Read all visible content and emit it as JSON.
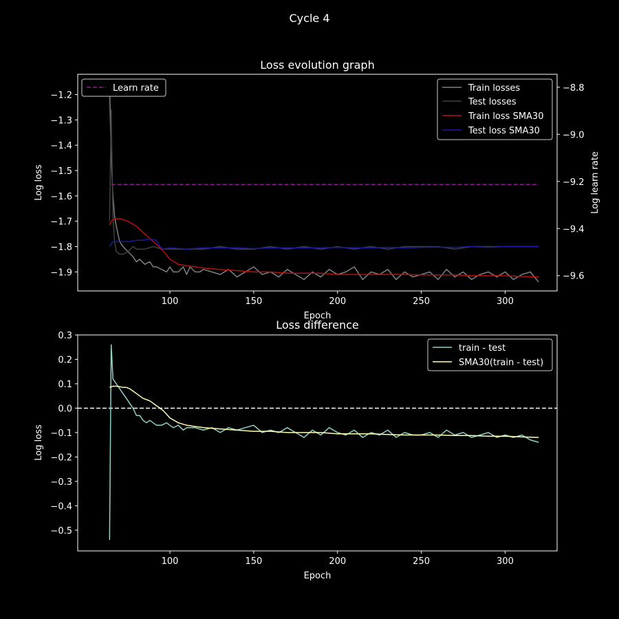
{
  "figure": {
    "suptitle": "Cycle 4",
    "background": "#000000",
    "foreground": "#ffffff"
  },
  "chart_data": [
    {
      "type": "line",
      "title": "Loss evolution graph",
      "xlabel": "Epoch",
      "ylabel": "Log loss",
      "y2label": "Log learn rate",
      "xlim": [
        45,
        331
      ],
      "ylim": [
        -1.975,
        -1.12
      ],
      "y2lim": [
        -9.665,
        -8.745
      ],
      "xticks": [
        100,
        150,
        200,
        250,
        300
      ],
      "xtick_labels": [
        "100",
        "150",
        "200",
        "250",
        "300"
      ],
      "yticks": [
        -1.9,
        -1.8,
        -1.7,
        -1.6,
        -1.5,
        -1.4,
        -1.3,
        -1.2
      ],
      "ytick_labels": [
        "−1.9",
        "−1.8",
        "−1.7",
        "−1.6",
        "−1.5",
        "−1.4",
        "−1.3",
        "−1.2"
      ],
      "y2ticks": [
        -9.6,
        -9.4,
        -9.2,
        -9.0,
        -8.8
      ],
      "y2tick_labels": [
        "−9.6",
        "−9.4",
        "−9.2",
        "−9.0",
        "−8.8"
      ],
      "grid": false,
      "legend_left": {
        "placement": "upper-left",
        "entries": [
          "Learn rate"
        ]
      },
      "legend_right": {
        "placement": "upper-right",
        "entries": [
          "Train losses",
          "Test losses",
          "Train loss SMA30",
          "Test loss SMA30"
        ]
      },
      "series": [
        {
          "name": "Learn rate",
          "axis": "right",
          "color": "#8b1a8b",
          "dashed": true,
          "x": [
            65,
            320
          ],
          "y": [
            -9.213,
            -9.213
          ]
        },
        {
          "name": "Train losses",
          "axis": "left",
          "color": "#808080",
          "x": [
            64,
            65,
            66,
            67,
            68,
            70,
            72,
            75,
            78,
            80,
            82,
            85,
            88,
            90,
            92,
            95,
            98,
            100,
            102,
            105,
            108,
            110,
            112,
            115,
            118,
            120,
            125,
            130,
            135,
            140,
            145,
            150,
            155,
            160,
            165,
            170,
            175,
            180,
            185,
            190,
            195,
            200,
            205,
            210,
            215,
            220,
            225,
            230,
            235,
            240,
            245,
            250,
            255,
            260,
            265,
            270,
            275,
            280,
            285,
            290,
            295,
            300,
            305,
            310,
            315,
            320
          ],
          "y": [
            -1.17,
            -1.45,
            -1.6,
            -1.68,
            -1.72,
            -1.78,
            -1.8,
            -1.82,
            -1.84,
            -1.86,
            -1.85,
            -1.87,
            -1.86,
            -1.88,
            -1.88,
            -1.89,
            -1.9,
            -1.88,
            -1.9,
            -1.9,
            -1.88,
            -1.91,
            -1.88,
            -1.9,
            -1.9,
            -1.89,
            -1.9,
            -1.91,
            -1.89,
            -1.92,
            -1.9,
            -1.88,
            -1.91,
            -1.9,
            -1.92,
            -1.89,
            -1.91,
            -1.93,
            -1.9,
            -1.92,
            -1.89,
            -1.91,
            -1.9,
            -1.88,
            -1.93,
            -1.9,
            -1.91,
            -1.89,
            -1.93,
            -1.9,
            -1.92,
            -1.91,
            -1.9,
            -1.93,
            -1.89,
            -1.92,
            -1.9,
            -1.93,
            -1.91,
            -1.9,
            -1.92,
            -1.9,
            -1.93,
            -1.91,
            -1.9,
            -1.94
          ]
        },
        {
          "name": "Test losses",
          "axis": "left",
          "color": "#404040",
          "x": [
            64,
            65,
            66,
            67,
            68,
            70,
            72,
            75,
            78,
            80,
            85,
            90,
            95,
            100,
            110,
            120,
            130,
            140,
            150,
            160,
            170,
            180,
            190,
            200,
            210,
            220,
            230,
            240,
            250,
            260,
            270,
            280,
            290,
            300,
            310,
            320
          ],
          "y": [
            -1.7,
            -1.26,
            -1.68,
            -1.78,
            -1.82,
            -1.83,
            -1.83,
            -1.82,
            -1.8,
            -1.81,
            -1.81,
            -1.8,
            -1.81,
            -1.81,
            -1.81,
            -1.81,
            -1.8,
            -1.81,
            -1.81,
            -1.8,
            -1.81,
            -1.8,
            -1.81,
            -1.8,
            -1.81,
            -1.8,
            -1.81,
            -1.8,
            -1.8,
            -1.8,
            -1.81,
            -1.8,
            -1.8,
            -1.8,
            -1.8,
            -1.8
          ]
        },
        {
          "name": "Train loss SMA30",
          "axis": "left",
          "color": "#b81010",
          "x": [
            64,
            65,
            67,
            70,
            75,
            80,
            85,
            90,
            95,
            100,
            105,
            110,
            120,
            130,
            140,
            150,
            160,
            170,
            180,
            190,
            200,
            210,
            220,
            230,
            240,
            250,
            260,
            270,
            280,
            290,
            300,
            310,
            320
          ],
          "y": [
            -1.715,
            -1.7,
            -1.69,
            -1.69,
            -1.7,
            -1.72,
            -1.75,
            -1.78,
            -1.81,
            -1.85,
            -1.87,
            -1.875,
            -1.885,
            -1.89,
            -1.895,
            -1.9,
            -1.9,
            -1.905,
            -1.905,
            -1.905,
            -1.91,
            -1.91,
            -1.91,
            -1.91,
            -1.91,
            -1.912,
            -1.912,
            -1.912,
            -1.915,
            -1.915,
            -1.915,
            -1.918,
            -1.92
          ]
        },
        {
          "name": "Test loss SMA30",
          "axis": "left",
          "color": "#1a1aa8",
          "x": [
            64,
            66,
            68,
            72,
            76,
            80,
            84,
            88,
            92,
            94,
            96,
            100,
            110,
            120,
            130,
            140,
            150,
            160,
            170,
            180,
            190,
            200,
            210,
            220,
            230,
            240,
            250,
            260,
            270,
            280,
            290,
            300,
            310,
            320
          ],
          "y": [
            -1.8,
            -1.78,
            -1.78,
            -1.78,
            -1.78,
            -1.775,
            -1.775,
            -1.77,
            -1.775,
            -1.8,
            -1.81,
            -1.805,
            -1.81,
            -1.805,
            -1.805,
            -1.805,
            -1.808,
            -1.805,
            -1.805,
            -1.805,
            -1.805,
            -1.803,
            -1.805,
            -1.805,
            -1.803,
            -1.805,
            -1.803,
            -1.802,
            -1.803,
            -1.8,
            -1.803,
            -1.8,
            -1.8,
            -1.8
          ]
        }
      ]
    },
    {
      "type": "line",
      "title": "Loss difference",
      "xlabel": "Epoch",
      "ylabel": "Log loss",
      "xlim": [
        45,
        331
      ],
      "ylim": [
        -0.585,
        0.3
      ],
      "xticks": [
        100,
        150,
        200,
        250,
        300
      ],
      "xtick_labels": [
        "100",
        "150",
        "200",
        "250",
        "300"
      ],
      "yticks": [
        0.3,
        0.2,
        0.1,
        0.0,
        -0.1,
        -0.2,
        -0.3,
        -0.4,
        -0.5
      ],
      "ytick_labels": [
        "0.3",
        "0.2",
        "0.1",
        "0.0",
        "−0.1",
        "−0.2",
        "−0.3",
        "−0.4",
        "−0.5"
      ],
      "grid": false,
      "hline": {
        "y": 0.0,
        "color": "#ffffff",
        "dashed": true
      },
      "legend": {
        "placement": "upper-right",
        "entries": [
          "train - test",
          "SMA30(train - test)"
        ]
      },
      "series": [
        {
          "name": "train - test",
          "color": "#8dd3c7",
          "x": [
            64,
            65,
            66,
            67,
            68,
            70,
            72,
            74,
            76,
            78,
            80,
            82,
            84,
            86,
            88,
            90,
            92,
            95,
            98,
            100,
            102,
            105,
            108,
            110,
            115,
            120,
            125,
            130,
            135,
            140,
            145,
            150,
            155,
            160,
            165,
            170,
            175,
            180,
            185,
            190,
            195,
            200,
            205,
            210,
            215,
            220,
            225,
            230,
            235,
            240,
            245,
            250,
            255,
            260,
            265,
            270,
            275,
            280,
            285,
            290,
            295,
            300,
            305,
            310,
            315,
            320
          ],
          "y": [
            -0.54,
            0.26,
            0.12,
            0.11,
            0.1,
            0.08,
            0.06,
            0.04,
            0.02,
            0.0,
            -0.03,
            -0.03,
            -0.05,
            -0.06,
            -0.05,
            -0.06,
            -0.07,
            -0.07,
            -0.06,
            -0.07,
            -0.08,
            -0.07,
            -0.09,
            -0.08,
            -0.08,
            -0.09,
            -0.08,
            -0.1,
            -0.08,
            -0.09,
            -0.08,
            -0.07,
            -0.1,
            -0.09,
            -0.1,
            -0.08,
            -0.1,
            -0.12,
            -0.09,
            -0.11,
            -0.08,
            -0.1,
            -0.11,
            -0.09,
            -0.12,
            -0.1,
            -0.11,
            -0.09,
            -0.12,
            -0.1,
            -0.11,
            -0.11,
            -0.1,
            -0.12,
            -0.09,
            -0.11,
            -0.1,
            -0.12,
            -0.11,
            -0.1,
            -0.12,
            -0.11,
            -0.12,
            -0.11,
            -0.13,
            -0.14
          ]
        },
        {
          "name": "SMA30(train - test)",
          "color": "#ffffb3",
          "x": [
            64,
            66,
            68,
            70,
            72,
            74,
            76,
            78,
            80,
            82,
            84,
            86,
            88,
            90,
            92,
            94,
            96,
            98,
            100,
            105,
            110,
            115,
            120,
            130,
            140,
            150,
            160,
            170,
            180,
            190,
            200,
            210,
            220,
            230,
            240,
            250,
            260,
            270,
            280,
            290,
            300,
            310,
            320
          ],
          "y": [
            0.085,
            0.09,
            0.09,
            0.088,
            0.085,
            0.085,
            0.08,
            0.07,
            0.06,
            0.05,
            0.04,
            0.035,
            0.03,
            0.02,
            0.01,
            0.0,
            -0.01,
            -0.025,
            -0.04,
            -0.06,
            -0.07,
            -0.075,
            -0.08,
            -0.085,
            -0.09,
            -0.095,
            -0.095,
            -0.1,
            -0.1,
            -0.1,
            -0.105,
            -0.105,
            -0.105,
            -0.108,
            -0.11,
            -0.11,
            -0.11,
            -0.112,
            -0.112,
            -0.115,
            -0.115,
            -0.118,
            -0.12
          ]
        }
      ]
    }
  ]
}
